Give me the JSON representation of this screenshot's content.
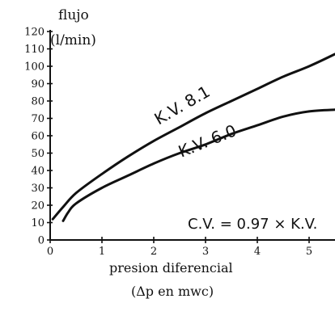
{
  "chart_data": {
    "type": "line",
    "ylabel_line1": "flujo",
    "ylabel_line2": "(l/min)",
    "xlabel_line1": "presion diferencial",
    "xlabel_line2": "(Δp en mwc)",
    "annotation": "C.V. = 0.97 × K.V.",
    "xlim": [
      0,
      5.5
    ],
    "ylim": [
      0,
      120
    ],
    "xticks": [
      0,
      1,
      2,
      3,
      4,
      5
    ],
    "xtick_labels": [
      "0",
      "1",
      "2",
      "3",
      "4",
      "5"
    ],
    "yticks": [
      0,
      10,
      20,
      30,
      40,
      50,
      60,
      70,
      80,
      90,
      100,
      110,
      120
    ],
    "ytick_labels": [
      "0",
      "10",
      "20",
      "30",
      "40",
      "50",
      "60",
      "70",
      "80",
      "90",
      "100",
      "110",
      "120"
    ],
    "series": [
      {
        "name": "K.V. 8.1",
        "x": [
          0.05,
          0.25,
          0.5,
          1,
          1.5,
          2,
          2.5,
          3,
          3.5,
          4,
          4.5,
          5,
          5.5
        ],
        "y": [
          12,
          19,
          27,
          38,
          48,
          57,
          65,
          73,
          80,
          87,
          94,
          100,
          107
        ]
      },
      {
        "name": "K.V. 6.0",
        "x": [
          0.25,
          0.35,
          0.5,
          1,
          1.5,
          2,
          2.5,
          3,
          3.5,
          4,
          4.5,
          5,
          5.5
        ],
        "y": [
          11,
          16,
          21,
          30,
          37,
          44,
          50,
          55,
          61,
          66,
          71,
          74,
          75
        ]
      }
    ]
  }
}
